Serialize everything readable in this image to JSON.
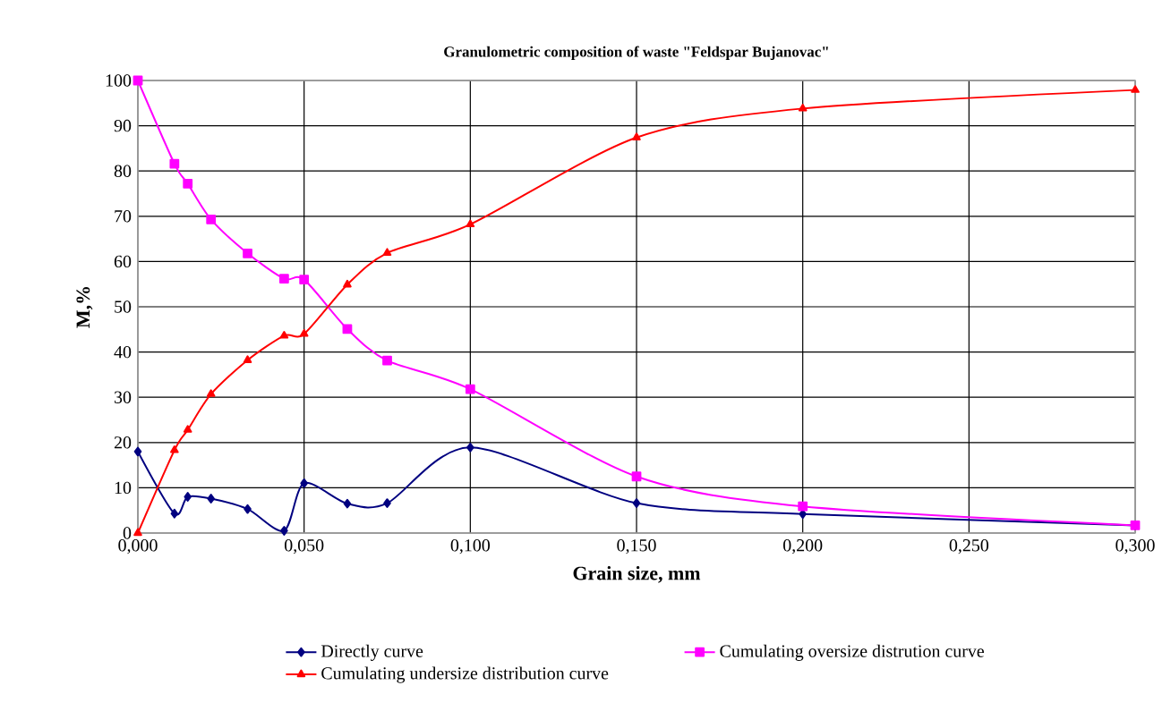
{
  "chart_data": {
    "type": "line",
    "title": "Granulometric composition of waste \"Feldspar Bujanovac\"",
    "xlabel": "Grain size, mm",
    "ylabel": "M,%",
    "x": [
      0,
      0.011,
      0.015,
      0.022,
      0.033,
      0.044,
      0.05,
      0.063,
      0.075,
      0.1,
      0.15,
      0.2,
      0.3
    ],
    "series": [
      {
        "name": "Directly curve",
        "color": "#000080",
        "marker": "diamond",
        "values": [
          18,
          4.3,
          8,
          7.6,
          5.3,
          0.5,
          11,
          6.5,
          6.6,
          18.9,
          6.6,
          4.2,
          1.7
        ]
      },
      {
        "name": "Cumulating oversize distrution curve",
        "color": "#ff00ff",
        "marker": "square",
        "values": [
          100,
          81.6,
          77.2,
          69.3,
          61.8,
          56.2,
          56,
          45.1,
          38.1,
          31.8,
          12.5,
          5.9,
          1.7
        ]
      },
      {
        "name": "Cumulating undersize distribution curve",
        "color": "#ff0000",
        "marker": "triangle",
        "values": [
          0,
          18.3,
          22.8,
          30.7,
          38.2,
          43.6,
          44,
          54.9,
          61.9,
          68.2,
          87.4,
          93.8,
          97.9
        ]
      }
    ],
    "xlim": [
      0,
      0.3
    ],
    "ylim": [
      0,
      100
    ],
    "xticks": [
      {
        "value": 0,
        "label": "0,000"
      },
      {
        "value": 0.05,
        "label": "0,050"
      },
      {
        "value": 0.1,
        "label": "0,100"
      },
      {
        "value": 0.15,
        "label": "0,150"
      },
      {
        "value": 0.2,
        "label": "0,200"
      },
      {
        "value": 0.25,
        "label": "0,250"
      },
      {
        "value": 0.3,
        "label": "0,300"
      }
    ],
    "yticks": [
      0,
      10,
      20,
      30,
      40,
      50,
      60,
      70,
      80,
      90,
      100
    ],
    "grid": true,
    "legend": "bottom",
    "line_style": "solid"
  }
}
